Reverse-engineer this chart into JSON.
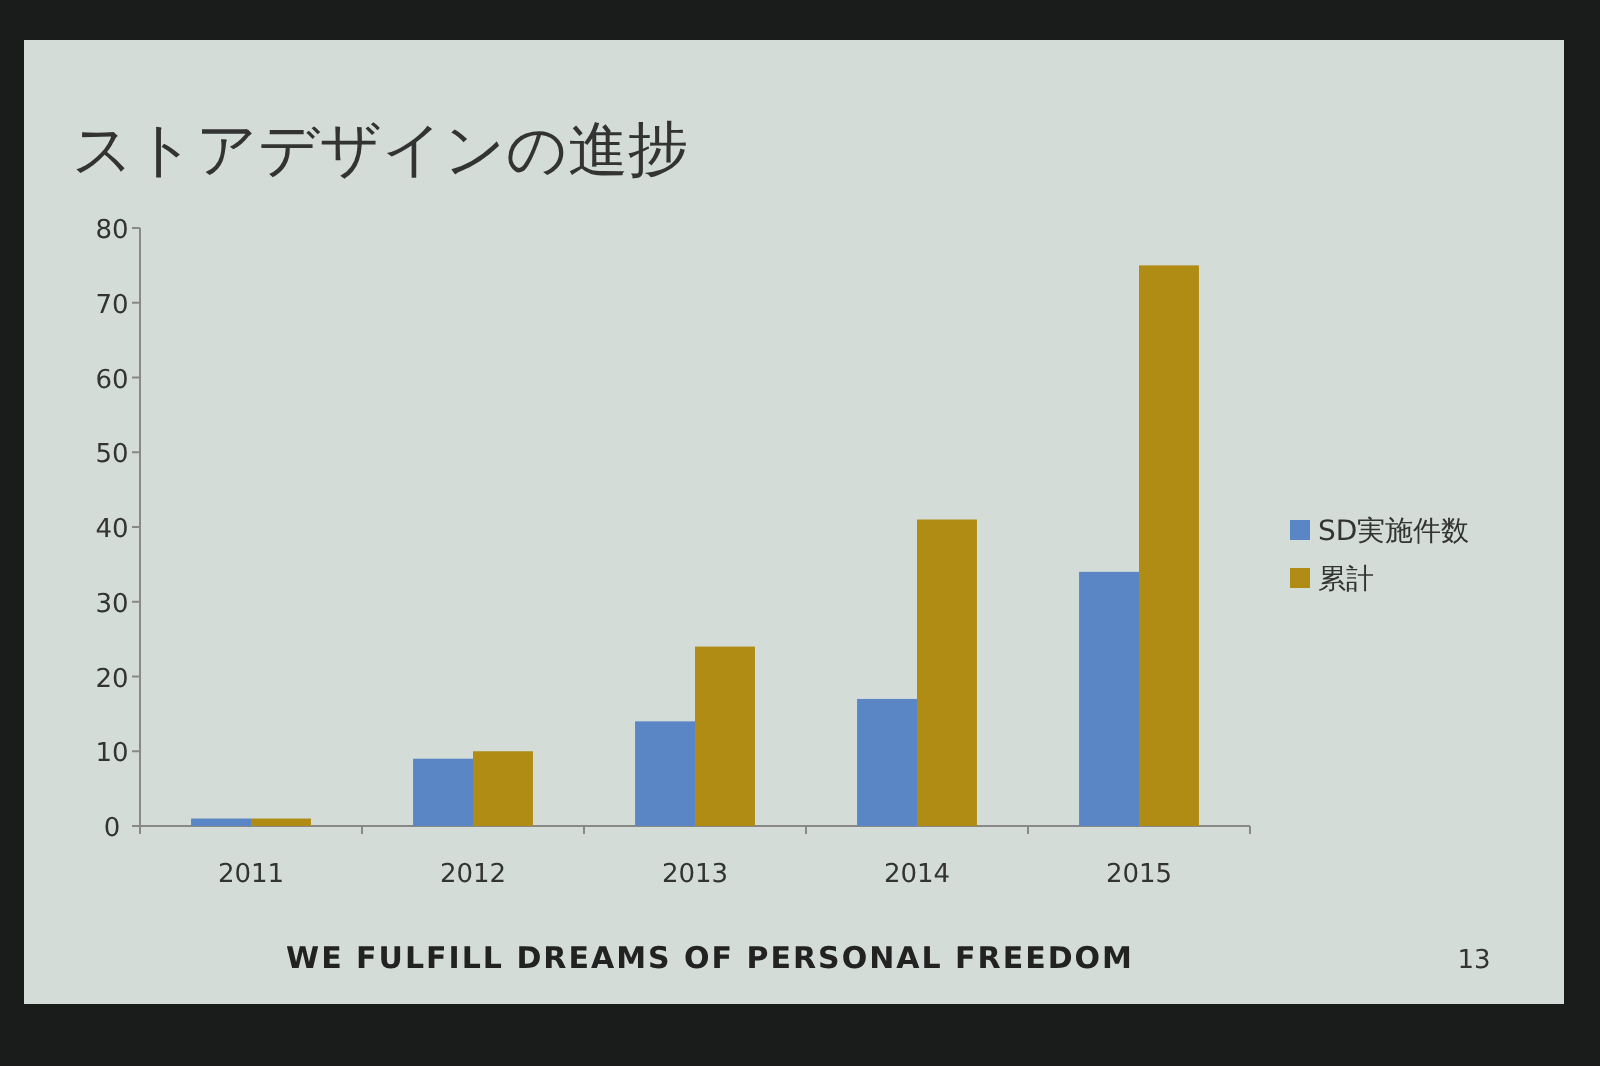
{
  "chart_data": {
    "type": "bar",
    "title": "ストアデザインの進捗",
    "categories": [
      "2011",
      "2012",
      "2013",
      "2014",
      "2015"
    ],
    "series": [
      {
        "name": "SD実施件数",
        "color": "#5b86c5",
        "values": [
          1,
          9,
          14,
          17,
          34
        ]
      },
      {
        "name": "累計",
        "color": "#b08c14",
        "values": [
          1,
          10,
          24,
          41,
          75
        ]
      }
    ],
    "ylim": [
      0,
      80
    ],
    "yticks": [
      0,
      10,
      20,
      30,
      40,
      50,
      60,
      70,
      80
    ],
    "legend": "right",
    "annotations": [
      "WE FULFILL DREAMS OF PERSONAL FREEDOM",
      "13"
    ]
  }
}
